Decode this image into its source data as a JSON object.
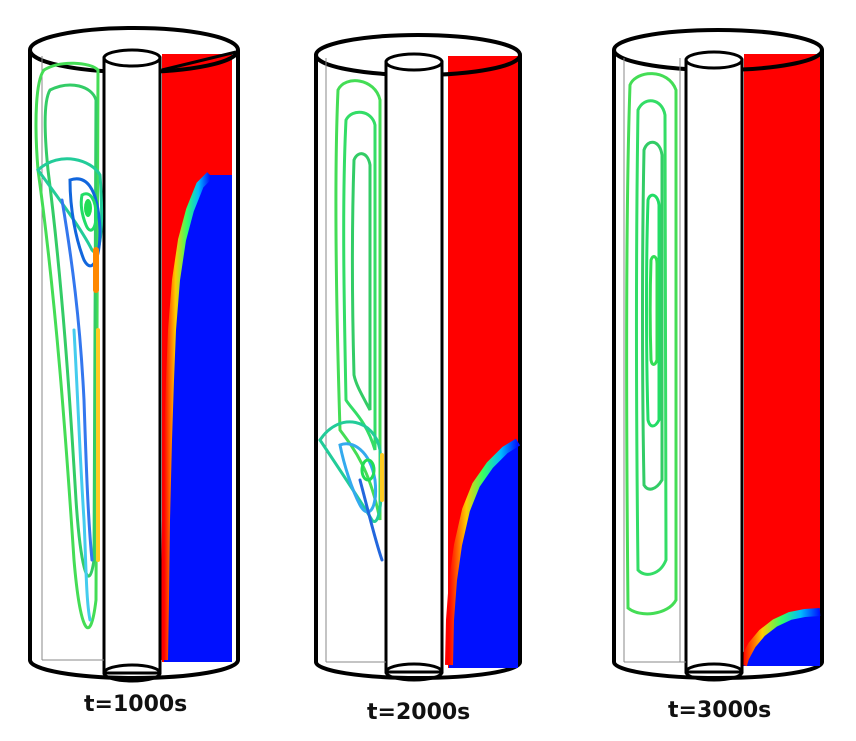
{
  "panels": [
    {
      "caption": "t=1000s",
      "interface": [
        [
          210,
          175
        ],
        [
          200,
          185
        ],
        [
          190,
          210
        ],
        [
          182,
          240
        ],
        [
          176,
          280
        ],
        [
          172,
          330
        ],
        [
          170,
          380
        ],
        [
          168,
          440
        ],
        [
          166,
          520
        ],
        [
          165,
          600
        ],
        [
          164,
          660
        ]
      ]
    },
    {
      "caption": "t=2000s",
      "interface": [
        [
          518,
          442
        ],
        [
          505,
          450
        ],
        [
          490,
          465
        ],
        [
          476,
          485
        ],
        [
          466,
          510
        ],
        [
          458,
          545
        ],
        [
          453,
          580
        ],
        [
          450,
          620
        ],
        [
          449,
          665
        ]
      ]
    },
    {
      "caption": "t=3000s",
      "interface": [
        [
          820,
          612
        ],
        [
          805,
          613
        ],
        [
          790,
          616
        ],
        [
          775,
          623
        ],
        [
          762,
          633
        ],
        [
          752,
          645
        ],
        [
          745,
          658
        ],
        [
          743,
          665
        ]
      ]
    }
  ],
  "colors": {
    "red": "#ff0000",
    "blue": "#0010ff",
    "streamline": "#33dd55",
    "outline": "#000000"
  }
}
